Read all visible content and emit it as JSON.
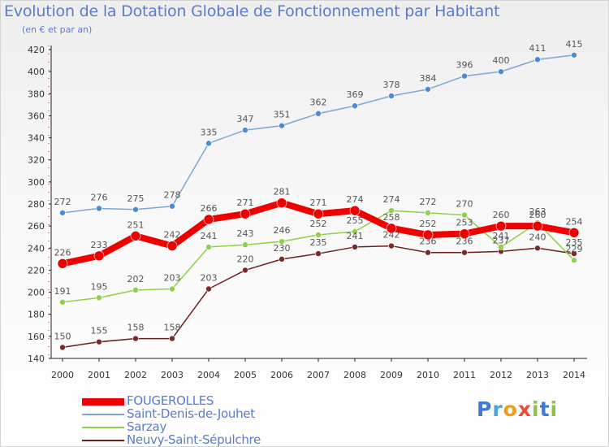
{
  "title": "Evolution de la Dotation Globale de Fonctionnement par Habitant",
  "subtitle": "(en € et par an)",
  "logo": {
    "letters": [
      "P",
      "r",
      "o",
      "x",
      "i",
      "t",
      "i"
    ],
    "colors": [
      "#3a7bd5",
      "#4aa3df",
      "#f39c12",
      "#e74c3c",
      "#8bc34a",
      "#3a7bd5",
      "#8bc34a"
    ]
  },
  "chart_data": {
    "type": "line",
    "title": "Evolution de la Dotation Globale de Fonctionnement par Habitant",
    "subtitle": "(en € et par an)",
    "xlabel": "",
    "ylabel": "",
    "categories": [
      "2000",
      "2001",
      "2002",
      "2003",
      "2004",
      "2005",
      "2006",
      "2007",
      "2008",
      "2009",
      "2010",
      "2011",
      "2012",
      "2013",
      "2014"
    ],
    "y_ticks": [
      "140",
      "160",
      "180",
      "200",
      "220",
      "240",
      "260",
      "280",
      "300",
      "320",
      "340",
      "360",
      "380",
      "400",
      "420"
    ],
    "ylim": [
      140,
      420
    ],
    "grid": false,
    "legend_position": "bottom-left",
    "series": [
      {
        "name": "Neuvy-Saint-Sépulchre",
        "color": "#6b1e1e",
        "point_color": "#7b2a2a",
        "width": 1.5,
        "radius": 3.5,
        "values": [
          150,
          155,
          158,
          158,
          203,
          220,
          230,
          235,
          241,
          242,
          236,
          236,
          237,
          240,
          235
        ],
        "labels": [
          "150",
          "155",
          "158",
          "158",
          "203",
          "220",
          "230",
          "235",
          "241",
          "242",
          "236",
          "236",
          "237",
          "240",
          "235"
        ]
      },
      {
        "name": "Sarzay",
        "color": "#8ed04a",
        "point_color": "#8ed04a",
        "width": 1.5,
        "radius": 3.5,
        "values": [
          191,
          195,
          202,
          203,
          241,
          243,
          246,
          252,
          255,
          274,
          272,
          270,
          241,
          263,
          229
        ],
        "labels": [
          "191",
          "195",
          "202",
          "203",
          "241",
          "243",
          "246",
          "252",
          "255",
          "274",
          "272",
          "270",
          "241",
          "263",
          "229"
        ]
      },
      {
        "name": "Saint-Denis-de-Jouhet",
        "color": "#7ba7d6",
        "point_color": "#4a8ccf",
        "width": 1.5,
        "radius": 3.5,
        "values": [
          272,
          276,
          275,
          278,
          335,
          347,
          351,
          362,
          369,
          378,
          384,
          396,
          400,
          411,
          415
        ],
        "labels": [
          "272",
          "276",
          "275",
          "278",
          "335",
          "347",
          "351",
          "362",
          "369",
          "378",
          "384",
          "396",
          "400",
          "411",
          "415"
        ]
      },
      {
        "name": "FOUGEROLLES",
        "color": "#ee0000",
        "point_color": "#ee0000",
        "width": 8,
        "radius": 6,
        "values": [
          226,
          233,
          251,
          242,
          266,
          271,
          281,
          271,
          274,
          258,
          252,
          253,
          260,
          260,
          254
        ],
        "labels": [
          "226",
          "233",
          "251",
          "242",
          "266",
          "271",
          "281",
          "271",
          "274",
          "258",
          "252",
          "253",
          "260",
          "260",
          "254"
        ]
      }
    ],
    "legend": [
      {
        "name": "FOUGEROLLES",
        "color": "#ee0000",
        "thickness": 9
      },
      {
        "name": "Saint-Denis-de-Jouhet",
        "color": "#7ba7d6",
        "thickness": 2
      },
      {
        "name": "Sarzay",
        "color": "#8ed04a",
        "thickness": 2
      },
      {
        "name": "Neuvy-Saint-Sépulchre",
        "color": "#6b1e1e",
        "thickness": 2
      }
    ]
  }
}
